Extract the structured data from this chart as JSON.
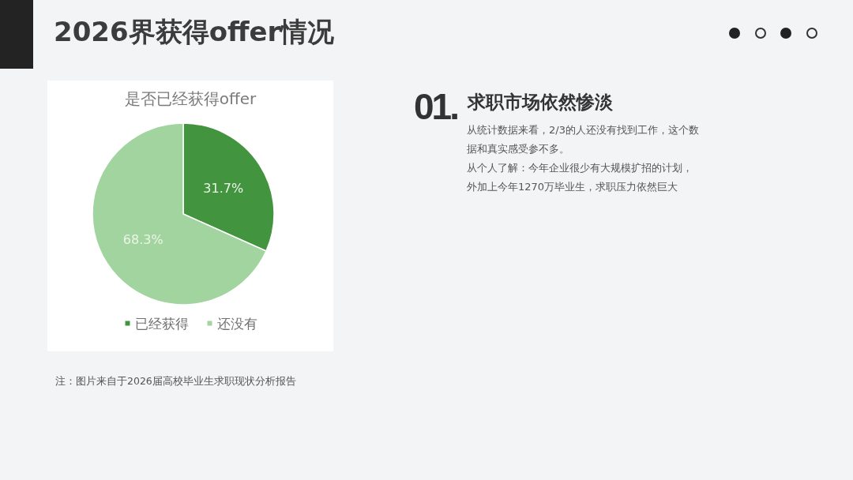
{
  "chart_data": {
    "type": "pie",
    "title": "是否已经获得offer",
    "categories": [
      "已经获得",
      "还没有"
    ],
    "values": [
      31.7,
      68.3
    ],
    "colors": [
      "#43943f",
      "#a2d4a0"
    ],
    "value_labels": [
      "31.7%",
      "68.3%"
    ],
    "legend": "bottom",
    "annotations": [
      "2026界获得offer情况",
      "01.",
      "求职市场依然惨淡",
      "从统计数据来看，2/3的人还没有找到工作，这个数据和真实感受参不多。",
      "从个人了解：今年企业很少有大规模扩招的计划，外加上今年1270万毕业生，求职压力依然巨大",
      "注：图片来自于2026届高校毕业生求职现状分析报告"
    ]
  }
}
